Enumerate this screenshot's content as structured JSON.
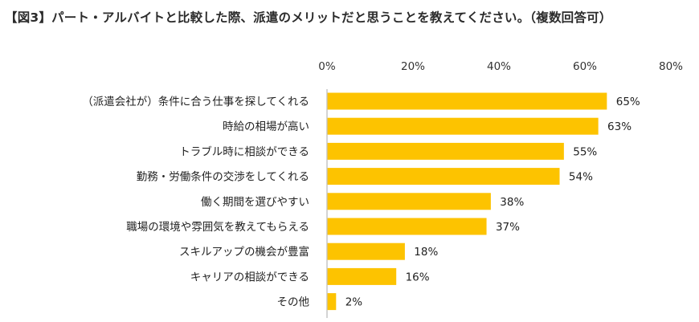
{
  "title": "【図3】パート・アルバイトと比較した際、派遣のメリットだと思うことを教えてください。（複数回答可）",
  "chart_data": {
    "type": "bar",
    "orientation": "horizontal",
    "title": "【図3】パート・アルバイトと比較した際、派遣のメリットだと思うことを教えてください。（複数回答可）",
    "categories": [
      "（派遣会社が）条件に合う仕事を探してくれる",
      "時給の相場が高い",
      "トラブル時に相談ができる",
      "勤務・労働条件の交渉をしてくれる",
      "働く期間を選びやすい",
      "職場の環境や雰囲気を教えてもらえる",
      "スキルアップの機会が豊富",
      "キャリアの相談ができる",
      "その他"
    ],
    "values": [
      65,
      63,
      55,
      54,
      38,
      37,
      18,
      16,
      2
    ],
    "value_labels": [
      "65%",
      "63%",
      "55%",
      "54%",
      "38%",
      "37%",
      "18%",
      "16%",
      "2%"
    ],
    "xlim": [
      0,
      80
    ],
    "xticks": [
      0,
      20,
      40,
      60,
      80
    ],
    "xtick_labels": [
      "0%",
      "20%",
      "40%",
      "60%",
      "80%"
    ],
    "axis_position": "top",
    "grid": false,
    "legend": false,
    "bar_color": "#FDC300",
    "axis_color": "#B8B8B8"
  }
}
